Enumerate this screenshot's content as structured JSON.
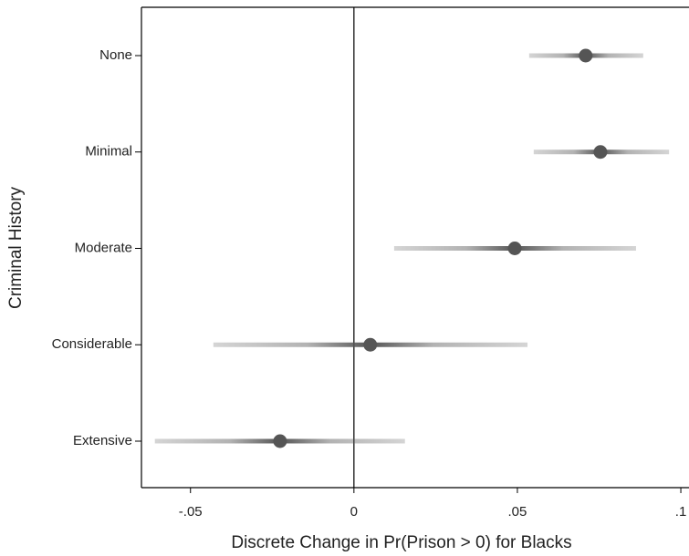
{
  "chart_data": {
    "type": "interval",
    "xlabel": "Discrete Change in Pr(Prison > 0) for Blacks",
    "ylabel": "Criminal History",
    "categories": [
      "None",
      "Minimal",
      "Moderate",
      "Considerable",
      "Extensive"
    ],
    "values": [
      0.0709,
      0.0754,
      0.0492,
      0.005,
      -0.0226
    ],
    "lower": [
      0.0536,
      0.055,
      0.0123,
      -0.043,
      -0.0609
    ],
    "upper": [
      0.0885,
      0.0964,
      0.0863,
      0.0531,
      0.0156
    ],
    "color": "#555555",
    "reference_line": 0,
    "xlim": [
      -0.065,
      0.1025
    ],
    "xticks": [
      {
        "value": -0.05,
        "label": "-.05"
      },
      0,
      {
        "value": 0.05,
        "label": ".05"
      },
      {
        "value": 0.1,
        "label": ".1"
      }
    ]
  }
}
